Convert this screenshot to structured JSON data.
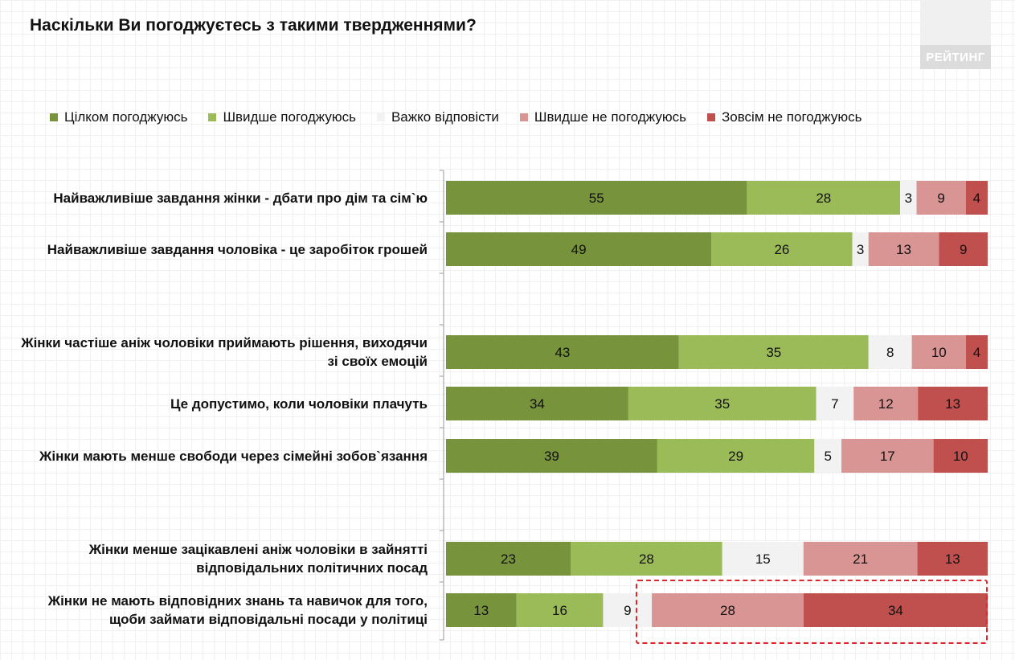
{
  "brand": "РЕЙТИНГ",
  "chart_data": {
    "type": "bar",
    "orientation": "horizontal",
    "stacked": true,
    "title": "Наскільки Ви погоджуєтесь з такими твердженнями?",
    "legend_position": "top",
    "categories": [
      "Найважливіше завдання жінки - дбати про дім та сім`ю",
      "Найважливіше завдання чоловіка - це заробіток грошей",
      "Жінки частіше аніж чоловіки приймають рішення, виходячи зі своїх емоцій",
      "Це допустимо, коли чоловіки плачуть",
      "Жінки мають менше свободи через сімейні зобов`язання",
      "Жінки менше зацікавлені аніж чоловіки в зайнятті відповідальних політичних посад",
      "Жінки не мають відповідних знань та навичок для того, щоби займати відповідальні посади у політиці"
    ],
    "series": [
      {
        "name": "Цілком погоджуюсь",
        "color": "#77933c",
        "values": [
          55,
          49,
          43,
          34,
          39,
          23,
          13
        ]
      },
      {
        "name": "Швидше погоджуюсь",
        "color": "#9bbb59",
        "values": [
          28,
          26,
          35,
          35,
          29,
          28,
          16
        ]
      },
      {
        "name": "Важко відповісти",
        "color": "#f2f2f2",
        "values": [
          3,
          3,
          8,
          7,
          5,
          15,
          9
        ]
      },
      {
        "name": "Швидше не погоджуюсь",
        "color": "#d99594",
        "values": [
          9,
          13,
          10,
          12,
          17,
          21,
          28
        ]
      },
      {
        "name": "Зовсім не погоджуюсь",
        "color": "#c0504d",
        "values": [
          4,
          9,
          4,
          13,
          10,
          13,
          34
        ]
      }
    ],
    "xlim": [
      0,
      100
    ],
    "grid": true
  }
}
